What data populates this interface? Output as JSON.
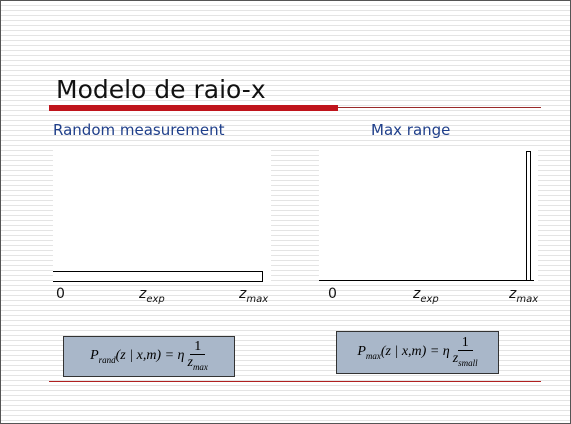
{
  "slide": {
    "title": "Modelo de raio-x",
    "panels": [
      {
        "heading": "Random measurement",
        "axis_labels": [
          {
            "base": "0"
          },
          {
            "base": "z",
            "sub": "exp"
          },
          {
            "base": "z",
            "sub": "max"
          }
        ],
        "formula": {
          "lhs": "P",
          "lhs_sub": "rand",
          "args": "(z | x,m) = η",
          "num": "1",
          "den": "z",
          "den_sub": "max"
        }
      },
      {
        "heading": "Max range",
        "axis_labels": [
          {
            "base": "0"
          },
          {
            "base": "z",
            "sub": "exp"
          },
          {
            "base": "z",
            "sub": "max"
          }
        ],
        "formula": {
          "lhs": "P",
          "lhs_sub": "max",
          "args": "(z | x,m) = η",
          "num": "1",
          "den": "z",
          "den_sub": "small"
        }
      }
    ]
  }
}
